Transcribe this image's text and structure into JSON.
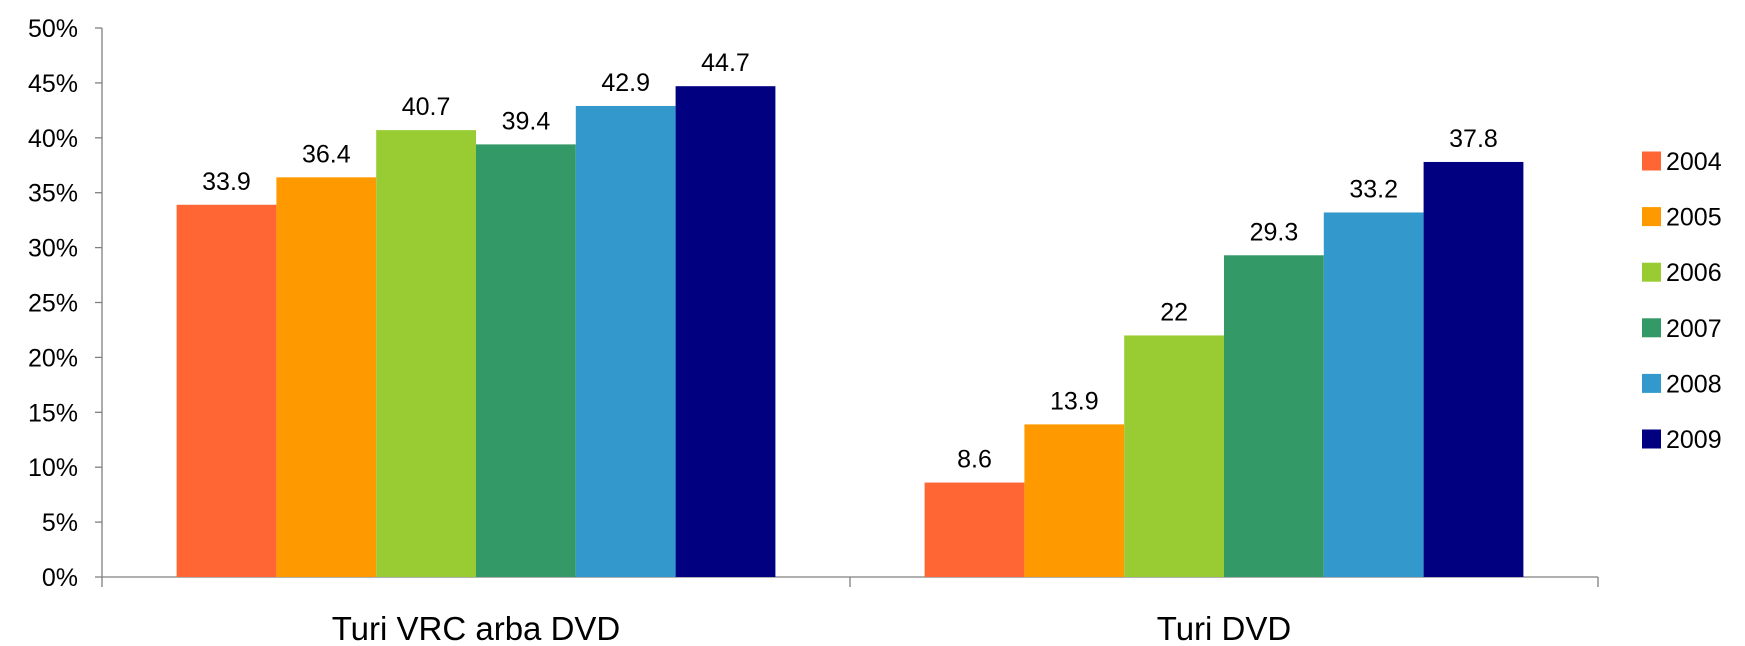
{
  "chart_data": {
    "type": "bar",
    "categories": [
      "Turi VRC arba DVD",
      "Turi DVD"
    ],
    "series": [
      {
        "name": "2004",
        "color": "#FF6633",
        "values": [
          33.9,
          8.6
        ]
      },
      {
        "name": "2005",
        "color": "#FF9900",
        "values": [
          36.4,
          13.9
        ]
      },
      {
        "name": "2006",
        "color": "#99CC33",
        "values": [
          40.7,
          22
        ]
      },
      {
        "name": "2007",
        "color": "#339966",
        "values": [
          39.4,
          29.3
        ]
      },
      {
        "name": "2008",
        "color": "#3399CC",
        "values": [
          42.9,
          33.2
        ]
      },
      {
        "name": "2009",
        "color": "#000080",
        "values": [
          44.7,
          37.8
        ]
      }
    ],
    "ylim": [
      0,
      50
    ],
    "yticks": [
      "0%",
      "5%",
      "10%",
      "15%",
      "20%",
      "25%",
      "30%",
      "35%",
      "40%",
      "45%",
      "50%"
    ],
    "legend_position": "right",
    "grid": false
  }
}
